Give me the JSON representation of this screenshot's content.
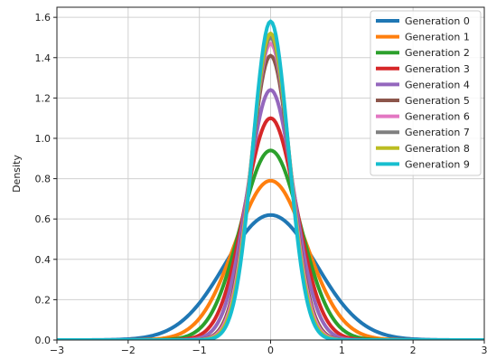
{
  "chart_data": {
    "type": "line",
    "title": "",
    "xlabel": "",
    "ylabel": "Density",
    "xlim": [
      -3,
      3
    ],
    "ylim": [
      0,
      1.65
    ],
    "xticks": [
      -3,
      -2,
      -1,
      0,
      1,
      2,
      3
    ],
    "xtick_labels": [
      "−3",
      "−2",
      "−1",
      "0",
      "1",
      "2",
      "3"
    ],
    "yticks": [
      0.0,
      0.2,
      0.4,
      0.6,
      0.8,
      1.0,
      1.2,
      1.4,
      1.6
    ],
    "ytick_labels": [
      "0.0",
      "0.2",
      "0.4",
      "0.6",
      "0.8",
      "1.0",
      "1.2",
      "1.4",
      "1.6"
    ],
    "grid": true,
    "legend_position": "top-right",
    "series": [
      {
        "name": "Generation 0",
        "color": "#1f77b4",
        "peak": 0.62,
        "sigma": 0.64
      },
      {
        "name": "Generation 1",
        "color": "#ff7f0e",
        "peak": 0.79,
        "sigma": 0.5
      },
      {
        "name": "Generation 2",
        "color": "#2ca02c",
        "peak": 0.94,
        "sigma": 0.42
      },
      {
        "name": "Generation 3",
        "color": "#d62728",
        "peak": 1.1,
        "sigma": 0.36
      },
      {
        "name": "Generation 4",
        "color": "#9467bd",
        "peak": 1.24,
        "sigma": 0.32
      },
      {
        "name": "Generation 5",
        "color": "#8c564b",
        "peak": 1.41,
        "sigma": 0.28
      },
      {
        "name": "Generation 6",
        "color": "#e377c2",
        "peak": 1.47,
        "sigma": 0.27
      },
      {
        "name": "Generation 7",
        "color": "#7f7f7f",
        "peak": 1.5,
        "sigma": 0.26
      },
      {
        "name": "Generation 8",
        "color": "#bcbd22",
        "peak": 1.52,
        "sigma": 0.26
      },
      {
        "name": "Generation 9",
        "color": "#17becf",
        "peak": 1.58,
        "sigma": 0.25
      }
    ]
  }
}
